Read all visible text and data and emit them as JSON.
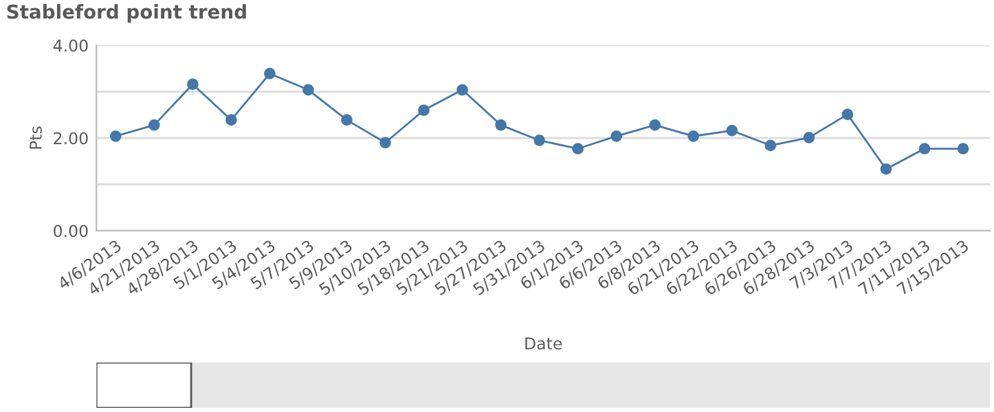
{
  "chart_data": {
    "type": "line",
    "title": "Stableford point trend",
    "xlabel": "Date",
    "ylabel": "Pts",
    "categories": [
      "4/6/2013",
      "4/21/2013",
      "4/28/2013",
      "5/1/2013",
      "5/4/2013",
      "5/7/2013",
      "5/9/2013",
      "5/10/2013",
      "5/18/2013",
      "5/21/2013",
      "5/27/2013",
      "5/31/2013",
      "6/1/2013",
      "6/6/2013",
      "6/8/2013",
      "6/21/2013",
      "6/22/2013",
      "6/26/2013",
      "6/28/2013",
      "7/3/2013",
      "7/7/2013",
      "7/11/2013",
      "7/15/2013"
    ],
    "series": [
      {
        "color": "#4477aa",
        "values": [
          2.04,
          2.28,
          3.16,
          2.39,
          3.39,
          3.04,
          2.39,
          1.9,
          2.6,
          3.04,
          2.28,
          1.95,
          1.77,
          2.04,
          2.28,
          2.04,
          2.16,
          1.84,
          2.01,
          2.51,
          1.33,
          1.77,
          1.77
        ]
      }
    ],
    "ylim": [
      0,
      4
    ],
    "yticks": [
      {
        "value": 0,
        "label": "0.00"
      },
      {
        "value": 1,
        "label": null
      },
      {
        "value": 2,
        "label": "2.00"
      },
      {
        "value": 3,
        "label": null
      },
      {
        "value": 4,
        "label": "4.00"
      }
    ],
    "grid": "y",
    "marker": "circle",
    "line_style": "solid"
  }
}
